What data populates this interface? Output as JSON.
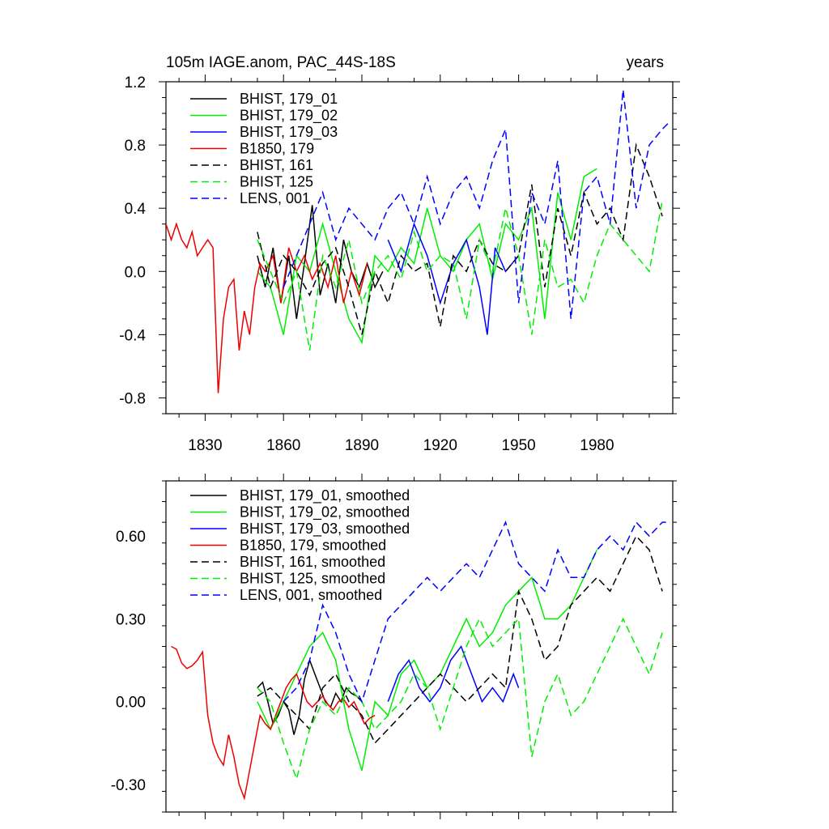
{
  "chart_data": [
    {
      "type": "line",
      "title": "105m IAGE.anom, PAC_44S-18S",
      "units_label": "years",
      "xlim": [
        1815,
        2009
      ],
      "ylim": [
        -0.9,
        1.2
      ],
      "x_ticks": [
        1830,
        1860,
        1890,
        1920,
        1950,
        1980
      ],
      "y_ticks": [
        -0.8,
        -0.4,
        0.0,
        0.4,
        0.8,
        1.2
      ],
      "y_tick_labels": [
        "-0.8",
        "-0.4",
        "0.0",
        "0.4",
        "0.8",
        "1.2"
      ],
      "legend_position": "top-left",
      "series": [
        {
          "name": "BHIST, 179_01",
          "color": "#000000",
          "dash": "solid",
          "x": [
            1850,
            1853,
            1856,
            1859,
            1862,
            1865,
            1868,
            1871,
            1874,
            1877,
            1880,
            1883,
            1886,
            1889,
            1892,
            1895,
            1898
          ],
          "y": [
            0.1,
            -0.1,
            0.15,
            -0.2,
            0.1,
            -0.3,
            0.05,
            0.42,
            -0.15,
            0.05,
            -0.2,
            0.2,
            0.0,
            -0.1,
            0.05,
            -0.1,
            0.0
          ]
        },
        {
          "name": "BHIST, 179_02",
          "color": "#00ee00",
          "dash": "solid",
          "x": [
            1850,
            1855,
            1860,
            1865,
            1870,
            1875,
            1880,
            1885,
            1890,
            1895,
            1900,
            1905,
            1910,
            1915,
            1920,
            1925,
            1930,
            1935,
            1940,
            1945,
            1950,
            1955,
            1960,
            1965,
            1970,
            1975,
            1980
          ],
          "y": [
            0.0,
            -0.1,
            -0.4,
            0.1,
            0.0,
            0.3,
            0.0,
            -0.3,
            -0.45,
            0.1,
            0.0,
            0.15,
            0.05,
            0.4,
            0.1,
            0.0,
            0.2,
            0.3,
            -0.05,
            0.3,
            0.2,
            0.4,
            -0.3,
            0.5,
            0.2,
            0.6,
            0.65
          ]
        },
        {
          "name": "BHIST, 179_03",
          "color": "#0000ff",
          "dash": "solid",
          "x": [
            1900,
            1905,
            1910,
            1915,
            1920,
            1925,
            1930,
            1935,
            1938,
            1941,
            1945,
            1950
          ],
          "y": [
            0.2,
            0.0,
            0.3,
            0.1,
            -0.2,
            0.05,
            0.2,
            -0.1,
            -0.4,
            0.15,
            0.0,
            0.1
          ]
        },
        {
          "name": "B1850, 179",
          "color": "#ee0000",
          "dash": "solid",
          "x": [
            1815,
            1817,
            1819,
            1821,
            1823,
            1825,
            1827,
            1829,
            1831,
            1833,
            1835,
            1837,
            1839,
            1841,
            1843,
            1845,
            1847,
            1849,
            1851,
            1853,
            1856,
            1859,
            1862,
            1865,
            1868,
            1871,
            1874,
            1877,
            1880,
            1883,
            1886,
            1889,
            1892
          ],
          "y": [
            0.3,
            0.2,
            0.3,
            0.2,
            0.15,
            0.25,
            0.1,
            0.15,
            0.2,
            0.15,
            -0.77,
            -0.3,
            -0.1,
            -0.05,
            -0.5,
            -0.25,
            -0.4,
            -0.1,
            0.05,
            0.0,
            0.1,
            -0.2,
            0.15,
            0.0,
            0.1,
            -0.05,
            0.05,
            -0.1,
            0.1,
            -0.2,
            0.0,
            -0.15,
            0.05
          ]
        },
        {
          "name": "BHIST, 161",
          "color": "#000000",
          "dash": "dashed",
          "x": [
            1850,
            1855,
            1860,
            1865,
            1870,
            1875,
            1880,
            1885,
            1890,
            1895,
            1900,
            1905,
            1910,
            1915,
            1920,
            1925,
            1930,
            1935,
            1940,
            1945,
            1950,
            1955,
            1960,
            1965,
            1970,
            1975,
            1980,
            1985,
            1990,
            1995,
            2000,
            2005
          ],
          "y": [
            0.25,
            -0.1,
            0.1,
            0.0,
            -0.15,
            0.05,
            0.15,
            -0.1,
            -0.4,
            0.0,
            -0.2,
            0.1,
            0.0,
            0.05,
            -0.35,
            0.1,
            0.0,
            0.2,
            0.05,
            0.0,
            0.1,
            0.55,
            -0.1,
            0.4,
            0.1,
            0.5,
            0.3,
            0.4,
            0.2,
            0.8,
            0.6,
            0.35
          ]
        },
        {
          "name": "BHIST, 125",
          "color": "#00ee00",
          "dash": "dashed",
          "x": [
            1850,
            1855,
            1860,
            1865,
            1870,
            1875,
            1880,
            1885,
            1890,
            1895,
            1900,
            1905,
            1910,
            1915,
            1920,
            1925,
            1930,
            1935,
            1940,
            1945,
            1950,
            1955,
            1960,
            1965,
            1970,
            1975,
            1980,
            1985,
            1990,
            1995,
            2000,
            2005
          ],
          "y": [
            0.2,
            0.0,
            -0.2,
            0.0,
            -0.5,
            0.1,
            -0.1,
            0.2,
            -0.2,
            0.0,
            0.1,
            -0.05,
            0.25,
            0.0,
            0.1,
            0.05,
            -0.3,
            0.2,
            0.0,
            0.4,
            0.1,
            -0.4,
            0.2,
            -0.1,
            -0.05,
            -0.2,
            0.1,
            0.3,
            0.2,
            0.1,
            0.0,
            0.45
          ]
        },
        {
          "name": "LENS, 001",
          "color": "#0000ff",
          "dash": "dashed",
          "x": [
            1860,
            1865,
            1870,
            1875,
            1880,
            1885,
            1890,
            1895,
            1900,
            1905,
            1910,
            1915,
            1920,
            1925,
            1930,
            1935,
            1940,
            1945,
            1950,
            1955,
            1960,
            1965,
            1970,
            1975,
            1980,
            1985,
            1990,
            1995,
            2000,
            2005,
            2008
          ],
          "y": [
            -0.1,
            0.1,
            0.3,
            0.5,
            0.2,
            0.4,
            0.3,
            0.2,
            0.4,
            0.5,
            0.3,
            0.6,
            0.3,
            0.5,
            0.6,
            0.4,
            0.7,
            0.9,
            -0.2,
            0.5,
            0.3,
            0.7,
            -0.3,
            0.5,
            0.6,
            0.3,
            1.15,
            0.4,
            0.8,
            0.9,
            0.95
          ]
        }
      ]
    },
    {
      "type": "line",
      "title": "",
      "xlim": [
        1815,
        2009
      ],
      "ylim": [
        -0.4,
        0.8
      ],
      "x_ticks": [
        1830,
        1860,
        1890,
        1920,
        1950,
        1980
      ],
      "y_ticks": [
        -0.3,
        0.0,
        0.3,
        0.6
      ],
      "y_tick_labels": [
        "-0.30",
        "0.00",
        "0.30",
        "0.60"
      ],
      "legend_position": "top-left",
      "series": [
        {
          "name": "BHIST, 179_01, smoothed",
          "color": "#000000",
          "dash": "solid",
          "x": [
            1850,
            1852,
            1854,
            1856,
            1858,
            1860,
            1862,
            1864,
            1866,
            1868,
            1870,
            1872,
            1874,
            1876,
            1878,
            1880,
            1882,
            1884,
            1886,
            1888,
            1890
          ],
          "y": [
            0.05,
            0.07,
            0.0,
            -0.08,
            -0.05,
            0.0,
            -0.03,
            -0.12,
            -0.05,
            0.08,
            0.15,
            0.1,
            0.05,
            0.0,
            -0.02,
            0.03,
            0.0,
            0.05,
            0.03,
            0.02,
            0.0
          ]
        },
        {
          "name": "BHIST, 179_02, smoothed",
          "color": "#00ee00",
          "dash": "solid",
          "x": [
            1850,
            1855,
            1860,
            1865,
            1870,
            1875,
            1880,
            1885,
            1890,
            1895,
            1900,
            1905,
            1910,
            1915,
            1920,
            1925,
            1930,
            1935,
            1940,
            1945,
            1950,
            1955,
            1960,
            1965,
            1970,
            1975,
            1980
          ],
          "y": [
            0.0,
            -0.1,
            0.0,
            0.1,
            0.2,
            0.25,
            0.15,
            -0.1,
            -0.25,
            0.0,
            -0.05,
            0.1,
            0.15,
            0.05,
            0.1,
            0.2,
            0.3,
            0.2,
            0.25,
            0.35,
            0.4,
            0.45,
            0.3,
            0.3,
            0.35,
            0.45,
            0.55
          ]
        },
        {
          "name": "BHIST, 179_03, smoothed",
          "color": "#0000ff",
          "dash": "solid",
          "x": [
            1900,
            1904,
            1908,
            1912,
            1916,
            1920,
            1924,
            1928,
            1932,
            1936,
            1940,
            1944,
            1948,
            1950
          ],
          "y": [
            0.0,
            0.1,
            0.15,
            0.05,
            0.0,
            0.05,
            0.15,
            0.2,
            0.1,
            0.0,
            0.05,
            0.0,
            0.1,
            0.05
          ]
        },
        {
          "name": "B1850, 179, smoothed",
          "color": "#ee0000",
          "dash": "solid",
          "x": [
            1817,
            1819,
            1821,
            1823,
            1825,
            1827,
            1829,
            1831,
            1833,
            1835,
            1837,
            1839,
            1841,
            1843,
            1845,
            1847,
            1849,
            1851,
            1853,
            1855,
            1857,
            1859,
            1861,
            1863,
            1865,
            1867,
            1869,
            1871,
            1873,
            1875,
            1877,
            1879,
            1881,
            1883,
            1885,
            1887,
            1889,
            1891,
            1893,
            1895
          ],
          "y": [
            0.2,
            0.19,
            0.14,
            0.12,
            0.13,
            0.15,
            0.18,
            -0.05,
            -0.15,
            -0.2,
            -0.23,
            -0.12,
            -0.2,
            -0.3,
            -0.35,
            -0.25,
            -0.15,
            -0.05,
            -0.08,
            -0.1,
            -0.05,
            0.0,
            0.05,
            0.08,
            0.1,
            0.05,
            0.0,
            -0.02,
            0.0,
            0.02,
            -0.01,
            -0.03,
            0.0,
            0.01,
            -0.02,
            0.0,
            -0.04,
            -0.08,
            -0.06,
            -0.05
          ]
        },
        {
          "name": "BHIST, 161, smoothed",
          "color": "#000000",
          "dash": "dashed",
          "x": [
            1850,
            1855,
            1860,
            1865,
            1870,
            1875,
            1880,
            1885,
            1890,
            1895,
            1900,
            1905,
            1910,
            1915,
            1920,
            1925,
            1930,
            1935,
            1940,
            1945,
            1950,
            1955,
            1960,
            1965,
            1970,
            1975,
            1980,
            1985,
            1990,
            1995,
            2000,
            2005
          ],
          "y": [
            0.02,
            0.05,
            0.0,
            -0.05,
            -0.1,
            0.05,
            0.1,
            0.0,
            -0.05,
            -0.15,
            -0.1,
            -0.05,
            0.0,
            0.05,
            0.1,
            0.05,
            0.0,
            0.05,
            0.1,
            0.05,
            0.4,
            0.3,
            0.15,
            0.2,
            0.35,
            0.4,
            0.45,
            0.4,
            0.5,
            0.6,
            0.55,
            0.4
          ]
        },
        {
          "name": "BHIST, 125, smoothed",
          "color": "#00ee00",
          "dash": "dashed",
          "x": [
            1850,
            1855,
            1860,
            1865,
            1870,
            1875,
            1880,
            1885,
            1890,
            1895,
            1900,
            1905,
            1910,
            1915,
            1920,
            1925,
            1930,
            1935,
            1940,
            1945,
            1950,
            1955,
            1960,
            1965,
            1970,
            1975,
            1980,
            1985,
            1990,
            1995,
            2000,
            2005
          ],
          "y": [
            0.05,
            0.0,
            -0.15,
            -0.28,
            -0.1,
            0.0,
            -0.05,
            0.05,
            0.0,
            -0.1,
            -0.05,
            0.0,
            0.1,
            0.05,
            -0.1,
            0.05,
            0.2,
            0.3,
            0.2,
            0.25,
            0.3,
            -0.2,
            0.0,
            0.1,
            -0.05,
            0.0,
            0.1,
            0.2,
            0.3,
            0.2,
            0.1,
            0.25
          ]
        },
        {
          "name": "LENS, 001, smoothed",
          "color": "#0000ff",
          "dash": "dashed",
          "x": [
            1860,
            1865,
            1870,
            1875,
            1880,
            1885,
            1890,
            1895,
            1900,
            1905,
            1910,
            1915,
            1920,
            1925,
            1930,
            1935,
            1940,
            1945,
            1950,
            1955,
            1960,
            1965,
            1970,
            1975,
            1980,
            1985,
            1990,
            1995,
            2000,
            2005,
            2008
          ],
          "y": [
            0.0,
            0.05,
            0.15,
            0.35,
            0.25,
            0.1,
            0.0,
            0.15,
            0.3,
            0.35,
            0.4,
            0.45,
            0.4,
            0.45,
            0.5,
            0.45,
            0.55,
            0.65,
            0.5,
            0.45,
            0.4,
            0.55,
            0.45,
            0.45,
            0.55,
            0.6,
            0.55,
            0.65,
            0.6,
            0.65,
            0.65
          ]
        }
      ]
    }
  ]
}
